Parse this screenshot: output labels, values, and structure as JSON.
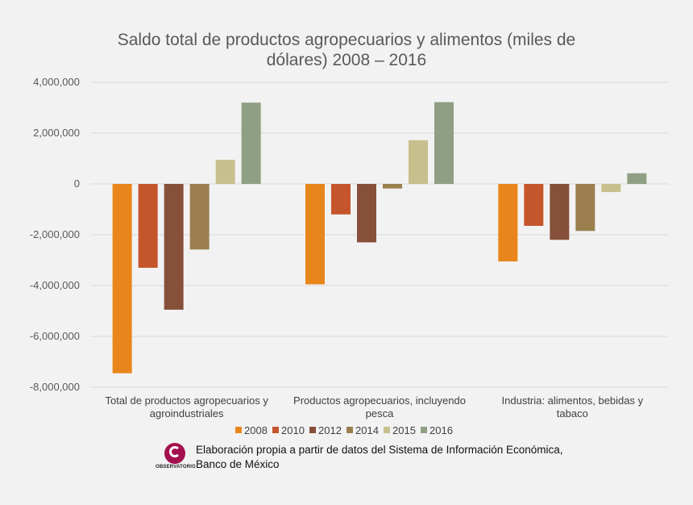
{
  "chart_data": {
    "type": "bar",
    "title_lines": [
      "Saldo total de productos agropecuarios y alimentos (miles de",
      "dólares) 2008 – 2016"
    ],
    "categories": [
      [
        "Total de productos agropecuarios y",
        "agroindustriales"
      ],
      [
        "Productos agropecuarios, incluyendo",
        "pesca"
      ],
      [
        "Industria: alimentos, bebidas y",
        "tabaco"
      ]
    ],
    "series": [
      {
        "name": "2008",
        "color": "#e8861b",
        "values": [
          -7450000,
          -3950000,
          -3050000
        ]
      },
      {
        "name": "2010",
        "color": "#c5562b",
        "values": [
          -3300000,
          -1200000,
          -1650000
        ]
      },
      {
        "name": "2012",
        "color": "#87503b",
        "values": [
          -4950000,
          -2300000,
          -2200000
        ]
      },
      {
        "name": "2014",
        "color": "#9c7f4f",
        "values": [
          -2580000,
          -180000,
          -1850000
        ]
      },
      {
        "name": "2015",
        "color": "#c8c08c",
        "values": [
          950000,
          1720000,
          -320000
        ]
      },
      {
        "name": "2016",
        "color": "#8f9f84",
        "values": [
          3200000,
          3220000,
          420000
        ]
      }
    ],
    "ylim": [
      -8000000,
      4000000
    ],
    "yticks": [
      4000000,
      2000000,
      0,
      -2000000,
      -4000000,
      -6000000,
      -8000000
    ],
    "ytick_labels": [
      "4,000,000",
      "2,000,000",
      "0",
      "-2,000,000",
      "-4,000,000",
      "-6,000,000",
      "-8,000,000"
    ],
    "grid": true,
    "legend_position": "bottom"
  },
  "source": {
    "logo_text": "OBSERVATORIO",
    "lines": [
      "Elaboración propia a partir de datos del Sistema de Información Económica,",
      "Banco de México"
    ]
  }
}
